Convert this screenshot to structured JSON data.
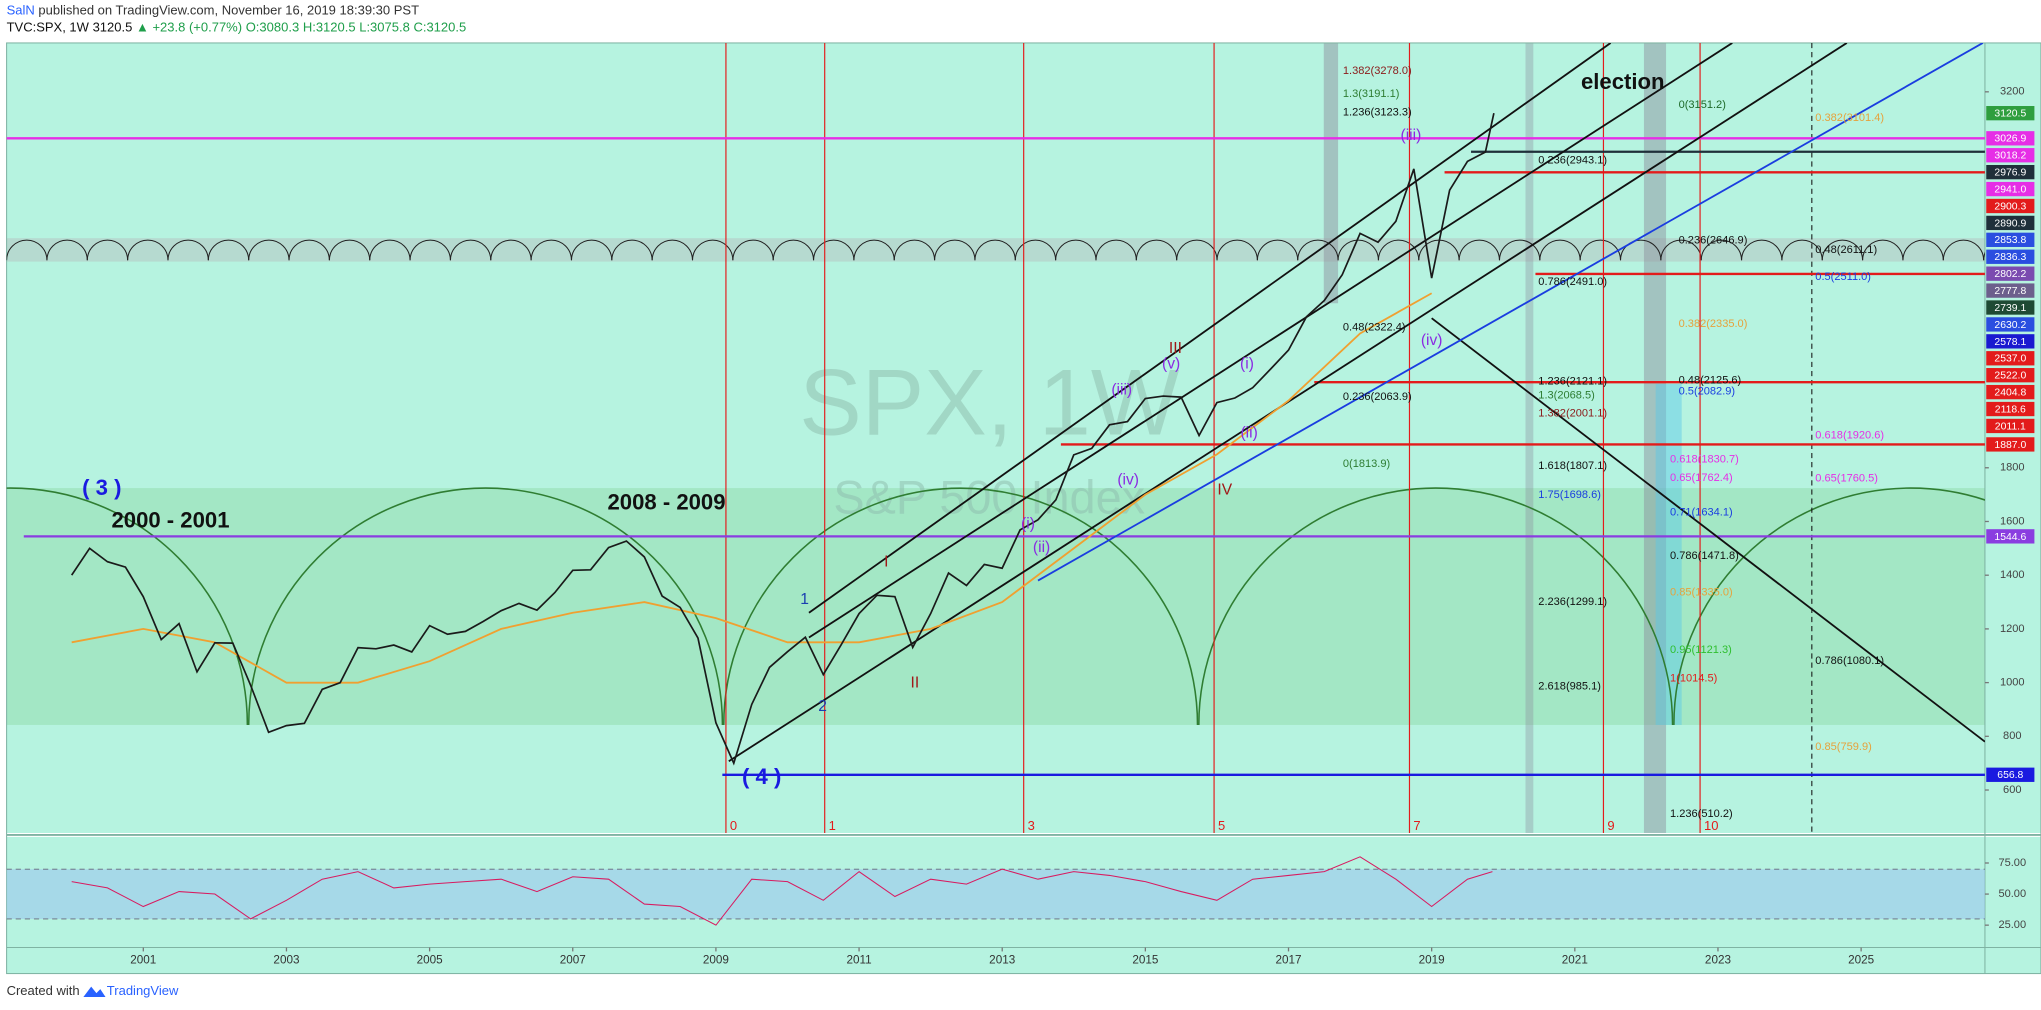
{
  "header": {
    "publisher": "SalN",
    "published": "published on TradingView.com, November 16, 2019 18:39:30 PST",
    "symbol": "TVC:SPX, 1W",
    "last": "3120.5",
    "change": "▲ +23.8 (+0.77%)",
    "ohlc": [
      "O:3080.3",
      "H:3120.5",
      "L:3075.8",
      "C:3120.5"
    ]
  },
  "footer": {
    "created": "Created with",
    "brand": "TradingView"
  },
  "chart_data": [
    {
      "type": "line",
      "watermark": [
        "SPX, 1W",
        "S&P 500 Index"
      ],
      "xlim": [
        1999.09,
        2026.73
      ],
      "xticks": [
        2001,
        2003,
        2005,
        2007,
        2009,
        2011,
        2013,
        2015,
        2017,
        2019,
        2021,
        2023,
        2025
      ],
      "ylim": [
        440,
        3382
      ],
      "yticks": [
        600,
        800,
        1000,
        1200,
        1400,
        1600,
        1800,
        3200
      ],
      "color": "#1a1a1a",
      "x": [
        2000,
        2000.25,
        2000.5,
        2000.75,
        2001,
        2001.25,
        2001.5,
        2001.75,
        2002,
        2002.25,
        2002.5,
        2002.75,
        2003,
        2003.25,
        2003.5,
        2003.75,
        2004,
        2004.25,
        2004.5,
        2004.75,
        2005,
        2005.25,
        2005.5,
        2005.75,
        2006,
        2006.25,
        2006.5,
        2006.75,
        2007,
        2007.25,
        2007.5,
        2007.75,
        2008,
        2008.25,
        2008.5,
        2008.75,
        2009,
        2009.25,
        2009.5,
        2009.75,
        2010,
        2010.25,
        2010.5,
        2010.75,
        2011,
        2011.25,
        2011.5,
        2011.75,
        2012,
        2012.25,
        2012.5,
        2012.75,
        2013,
        2013.25,
        2013.5,
        2013.75,
        2014,
        2014.25,
        2014.5,
        2014.75,
        2015,
        2015.25,
        2015.5,
        2015.75,
        2016,
        2016.25,
        2016.5,
        2016.75,
        2017,
        2017.25,
        2017.5,
        2017.75,
        2018,
        2018.25,
        2018.5,
        2018.75,
        2019,
        2019.25,
        2019.5,
        2019.75,
        2019.87
      ],
      "values": [
        1400,
        1500,
        1450,
        1430,
        1320,
        1160,
        1220,
        1040,
        1148,
        1147,
        990,
        815,
        840,
        848,
        975,
        1000,
        1130,
        1126,
        1140,
        1114,
        1212,
        1180,
        1191,
        1228,
        1268,
        1295,
        1270,
        1335,
        1418,
        1420,
        1503,
        1527,
        1468,
        1322,
        1280,
        1166,
        850,
        700,
        919,
        1057,
        1115,
        1169,
        1030,
        1141,
        1257,
        1325,
        1320,
        1131,
        1257,
        1408,
        1362,
        1440,
        1426,
        1569,
        1606,
        1681,
        1848,
        1872,
        1960,
        1972,
        2058,
        2067,
        2063,
        1920,
        2043,
        2060,
        2098,
        2168,
        2238,
        2362,
        2423,
        2519,
        2673,
        2640,
        2718,
        2913,
        2506,
        2834,
        2941,
        2976,
        3120.5
      ],
      "moving_average": {
        "color": "#f0a030",
        "x": [
          2000,
          2001,
          2002,
          2003,
          2004,
          2005,
          2006,
          2007,
          2008,
          2009,
          2010,
          2011,
          2012,
          2013,
          2014,
          2015,
          2016,
          2017,
          2018,
          2019
        ],
        "values": [
          1150,
          1200,
          1150,
          1000,
          1000,
          1080,
          1200,
          1260,
          1300,
          1240,
          1150,
          1150,
          1200,
          1300,
          1500,
          1700,
          1850,
          2050,
          2300,
          2450
        ]
      },
      "price_tags": {
        "values": [
          3120.5,
          3026.9,
          3018.2,
          2976.9,
          2941.0,
          2900.3,
          2890.9,
          2853.8,
          2836.3,
          2802.2,
          2777.8,
          2739.1,
          2630.2,
          2578.1,
          2537.0,
          2522.0,
          2404.8,
          2118.6,
          2011.1,
          1887.0,
          1544.6,
          656.8
        ],
        "value_labels": [
          "3120.5",
          "3026.9",
          "3018.2",
          "2976.9",
          "2941.0",
          "2900.3",
          "2890.9",
          "2853.8",
          "2836.3",
          "2802.2",
          "2777.8",
          "2739.1",
          "2630.2",
          "2578.1",
          "2537.0",
          "2522.0",
          "2404.8",
          "2118.6",
          "2011.1",
          "1887.0",
          "1544.6",
          "656.8"
        ],
        "colors": [
          "#2e9e3e",
          "#e62ee6",
          "#e62ee6",
          "#1f2f3a",
          "#e62ee6",
          "#e31b1b",
          "#1f2f3a",
          "#2a4ee0",
          "#2a4ee0",
          "#7b4bb0",
          "#6c5f8c",
          "#1f4a34",
          "#2a4ee0",
          "#1a1ad0",
          "#e31b1b",
          "#e31b1b",
          "#e31b1b",
          "#e31b1b",
          "#e31b1b",
          "#e31b1b",
          "#8a3de0",
          "#1a1ae0"
        ]
      },
      "horizontal_lines": {
        "values": [
          3026.9,
          1544.6,
          656.8,
          2118.6,
          1887.0,
          2522.0,
          2900.3,
          2976.9
        ],
        "x_start": [
          1999.09,
          1999.33,
          2009.09,
          2017.36,
          2013.82,
          2020.45,
          2019.18,
          2019.55
        ],
        "colors": [
          "#e62ee6",
          "#8a3de0",
          "#1a1ae0",
          "#e31b1b",
          "#e31b1b",
          "#e31b1b",
          "#e31b1b",
          "#1f2f3a"
        ]
      },
      "trend_lines": [
        {
          "x": [
            2009.18,
            2024.8
          ],
          "y": [
            707,
            3382
          ],
          "color": "#111"
        },
        {
          "x": [
            2010.3,
            2023.2
          ],
          "y": [
            1168,
            3382
          ],
          "color": "#111"
        },
        {
          "x": [
            2010.3,
            2021.5
          ],
          "y": [
            1260,
            3382
          ],
          "color": "#111"
        },
        {
          "x": [
            2019.0,
            2026.73
          ],
          "y": [
            2357,
            780
          ],
          "color": "#111"
        },
        {
          "x": [
            2013.5,
            2026.7
          ],
          "y": [
            1380,
            3382
          ],
          "color": "#1a3de0"
        }
      ],
      "vertical_lines": {
        "x": [
          2009.14,
          2010.52,
          2013.3,
          2015.96,
          2018.69,
          2021.4,
          2022.75
        ],
        "counts": [
          0,
          1,
          3,
          5,
          7,
          9,
          10
        ],
        "color": "#e31b1b"
      },
      "captions": [
        {
          "text": "( 3 )",
          "x": 2000.42,
          "y": 1720,
          "color": "#1a1ae0"
        },
        {
          "text": "2000 - 2001",
          "x": 2001.38,
          "y": 1599,
          "color": "#111"
        },
        {
          "text": "2008 - 2009",
          "x": 2008.31,
          "y": 1666,
          "color": "#111"
        },
        {
          "text": "( 4 )",
          "x": 2009.64,
          "y": 644,
          "color": "#1a1ae0"
        },
        {
          "text": "election",
          "x": 2021.67,
          "y": 3232,
          "color": "#111"
        }
      ],
      "wave_labels": [
        {
          "text": "1",
          "x": 2010.24,
          "y": 1308,
          "color": "#1a3db0"
        },
        {
          "text": "2",
          "x": 2010.49,
          "y": 910,
          "color": "#1a3db0"
        },
        {
          "text": "I",
          "x": 2011.38,
          "y": 1448,
          "color": "#a01818"
        },
        {
          "text": "II",
          "x": 2011.78,
          "y": 997,
          "color": "#a01818"
        },
        {
          "text": "III",
          "x": 2015.42,
          "y": 2243,
          "color": "#a01818"
        },
        {
          "text": "IV",
          "x": 2016.11,
          "y": 1715,
          "color": "#a01818"
        },
        {
          "text": "(i)",
          "x": 2013.36,
          "y": 1589,
          "color": "#8a2be2"
        },
        {
          "text": "(ii)",
          "x": 2013.55,
          "y": 1502,
          "color": "#8a2be2"
        },
        {
          "text": "(iii)",
          "x": 2014.67,
          "y": 2088,
          "color": "#8a2be2"
        },
        {
          "text": "(iv)",
          "x": 2014.76,
          "y": 1754,
          "color": "#8a2be2"
        },
        {
          "text": "(v)",
          "x": 2015.36,
          "y": 2185,
          "color": "#8a2be2"
        },
        {
          "text": "(i)",
          "x": 2016.42,
          "y": 2185,
          "color": "#8a2be2"
        },
        {
          "text": "(ii)",
          "x": 2016.45,
          "y": 1928,
          "color": "#8a2be2"
        },
        {
          "text": "(iii)",
          "x": 2018.71,
          "y": 3036,
          "color": "#8a2be2"
        },
        {
          "text": "(iv)",
          "x": 2019.0,
          "y": 2272,
          "color": "#8a2be2"
        }
      ],
      "fib_labels": [
        {
          "text": "1.382(3278.0)",
          "x": 2017.76,
          "y": 3278.0,
          "color": "#8b1a1a"
        },
        {
          "text": "1.3(3191.1)",
          "x": 2017.76,
          "y": 3191.1,
          "color": "#2e7d32"
        },
        {
          "text": "1.236(3123.3)",
          "x": 2017.76,
          "y": 3123.3,
          "color": "#111"
        },
        {
          "text": "0.48(2322.4)",
          "x": 2017.76,
          "y": 2322.4,
          "color": "#111"
        },
        {
          "text": "0.236(2063.9)",
          "x": 2017.76,
          "y": 2063.9,
          "color": "#111"
        },
        {
          "text": "0(1813.9)",
          "x": 2017.76,
          "y": 1813.9,
          "color": "#2e7d32"
        },
        {
          "text": "0.236(2943.1)",
          "x": 2020.49,
          "y": 2943.1,
          "color": "#111"
        },
        {
          "text": "0.786(2491.0)",
          "x": 2020.49,
          "y": 2491.0,
          "color": "#111"
        },
        {
          "text": "1.236(2121.1)",
          "x": 2020.49,
          "y": 2121.1,
          "color": "#111"
        },
        {
          "text": "1.3(2068.5)",
          "x": 2020.49,
          "y": 2068.5,
          "color": "#2e7d32"
        },
        {
          "text": "1.382(2001.1)",
          "x": 2020.49,
          "y": 2001.1,
          "color": "#8b1a1a"
        },
        {
          "text": "1.618(1807.1)",
          "x": 2020.49,
          "y": 1807.1,
          "color": "#111"
        },
        {
          "text": "1.75(1698.6)",
          "x": 2020.49,
          "y": 1698.6,
          "color": "#1a3de0"
        },
        {
          "text": "2.236(1299.1)",
          "x": 2020.49,
          "y": 1299.1,
          "color": "#111"
        },
        {
          "text": "2.618(985.1)",
          "x": 2020.49,
          "y": 985.1,
          "color": "#111"
        },
        {
          "text": "0(3151.2)",
          "x": 2022.45,
          "y": 3151.2,
          "color": "#1f6a2a"
        },
        {
          "text": "0.236(2646.9)",
          "x": 2022.45,
          "y": 2646.9,
          "color": "#111"
        },
        {
          "text": "0.382(2335.0)",
          "x": 2022.45,
          "y": 2335.0,
          "color": "#e6a23c"
        },
        {
          "text": "0.48(2125.6)",
          "x": 2022.45,
          "y": 2125.6,
          "color": "#111"
        },
        {
          "text": "0.5(2082.9)",
          "x": 2022.45,
          "y": 2082.9,
          "color": "#1a3de0"
        },
        {
          "text": "0.618(1830.7)",
          "x": 2022.33,
          "y": 1830.7,
          "color": "#e62ee6"
        },
        {
          "text": "0.65(1762.4)",
          "x": 2022.33,
          "y": 1762.4,
          "color": "#e62ee6"
        },
        {
          "text": "0.71(1634.1)",
          "x": 2022.33,
          "y": 1634.1,
          "color": "#1a3de0"
        },
        {
          "text": "0.786(1471.8)",
          "x": 2022.33,
          "y": 1471.8,
          "color": "#111"
        },
        {
          "text": "0.85(1335.0)",
          "x": 2022.33,
          "y": 1335.0,
          "color": "#e6a23c"
        },
        {
          "text": "0.95(1121.3)",
          "x": 2022.33,
          "y": 1121.3,
          "color": "#2fbf2f"
        },
        {
          "text": "1(1014.5)",
          "x": 2022.33,
          "y": 1014.5,
          "color": "#e31b1b"
        },
        {
          "text": "1.236(510.2)",
          "x": 2022.33,
          "y": 510.2,
          "color": "#111"
        },
        {
          "text": "0.382(3101.4)",
          "x": 2024.36,
          "y": 3101.4,
          "color": "#e6a23c"
        },
        {
          "text": "0.48(2611.1)",
          "x": 2024.36,
          "y": 2611.1,
          "color": "#111"
        },
        {
          "text": "0.5(2511.0)",
          "x": 2024.36,
          "y": 2511.0,
          "color": "#1a3de0"
        },
        {
          "text": "0.618(1920.6)",
          "x": 2024.36,
          "y": 1920.6,
          "color": "#e62ee6"
        },
        {
          "text": "0.65(1760.5)",
          "x": 2024.36,
          "y": 1760.5,
          "color": "#e62ee6"
        },
        {
          "text": "0.786(1080.1)",
          "x": 2024.36,
          "y": 1080.1,
          "color": "#111"
        },
        {
          "text": "0.85(759.9)",
          "x": 2024.36,
          "y": 759.9,
          "color": "#e6a23c"
        }
      ]
    },
    {
      "type": "line",
      "color": "#d81b60",
      "xlim": [
        1999.09,
        2026.73
      ],
      "ylim": [
        7,
        96
      ],
      "yticks": [
        {
          "value": 75,
          "label": "75.00"
        },
        {
          "value": 50,
          "label": "50.00"
        },
        {
          "value": 25,
          "label": "25.00"
        }
      ],
      "band": [
        30,
        70
      ],
      "x": [
        2000,
        2000.5,
        2001,
        2001.5,
        2002,
        2002.5,
        2003,
        2003.5,
        2004,
        2004.5,
        2005,
        2005.5,
        2006,
        2006.5,
        2007,
        2007.5,
        2008,
        2008.5,
        2009,
        2009.5,
        2010,
        2010.5,
        2011,
        2011.5,
        2012,
        2012.5,
        2013,
        2013.5,
        2014,
        2014.5,
        2015,
        2015.5,
        2016,
        2016.5,
        2017,
        2017.5,
        2018,
        2018.5,
        2019,
        2019.5,
        2019.85
      ],
      "values": [
        60,
        55,
        40,
        52,
        50,
        30,
        45,
        62,
        68,
        55,
        58,
        60,
        62,
        52,
        64,
        62,
        42,
        40,
        25,
        62,
        60,
        45,
        68,
        48,
        62,
        58,
        70,
        62,
        68,
        65,
        60,
        52,
        45,
        62,
        65,
        68,
        80,
        62,
        40,
        62,
        68
      ]
    }
  ]
}
